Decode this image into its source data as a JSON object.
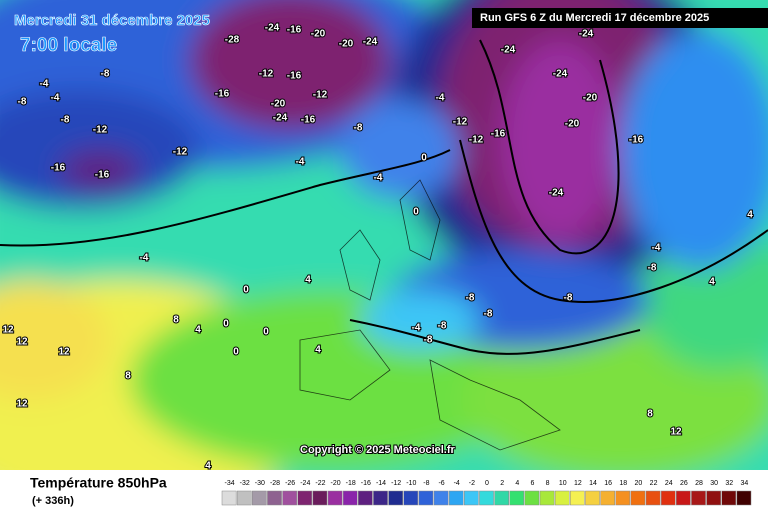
{
  "header": {
    "date": "Mercredi 31 décembre 2025",
    "time": "7:00 locale",
    "run": "Run GFS 6 Z du Mercredi 17 décembre 2025"
  },
  "copyright": "Copyright © 2025 Meteociel.fr",
  "footer": {
    "title": "Température 850hPa",
    "lead": "(+ 336h)"
  },
  "scale": {
    "values": [
      -34,
      -32,
      -30,
      -28,
      -26,
      -24,
      -22,
      -20,
      -18,
      -16,
      -14,
      -12,
      -10,
      -8,
      -6,
      -4,
      -2,
      0,
      2,
      4,
      6,
      8,
      10,
      12,
      14,
      16,
      18,
      20,
      22,
      24,
      26,
      28,
      30,
      32,
      34
    ],
    "colors": [
      "#dcdcdc",
      "#c0c0c0",
      "#a49aa8",
      "#8e6290",
      "#a0509e",
      "#7e2470",
      "#6a1c5c",
      "#9a2fa0",
      "#8a24aa",
      "#5e2080",
      "#3c2688",
      "#202c90",
      "#2646ba",
      "#2f62d8",
      "#3f82ea",
      "#2ea6f2",
      "#3cc6f6",
      "#34dadc",
      "#30d8a6",
      "#34e070",
      "#6ce042",
      "#a8e83a",
      "#d8f040",
      "#f5f052",
      "#f5d040",
      "#f5b030",
      "#f59020",
      "#f07010",
      "#e85010",
      "#e03010",
      "#c81818",
      "#a81818",
      "#901010",
      "#700808",
      "#400000"
    ]
  },
  "contour_labels": [
    -28,
    -24,
    -20,
    -20,
    -24,
    -16,
    -8,
    -4,
    -8,
    -4,
    -8,
    -12,
    -16,
    -16,
    -12,
    -16,
    -12,
    -16,
    -12,
    -20,
    -24,
    -16,
    -8,
    -4,
    -4,
    -12,
    -12,
    -16,
    -24,
    -24,
    -24,
    -20,
    -20,
    -16,
    -24,
    -4,
    4,
    0,
    4,
    0,
    0,
    0,
    4,
    8,
    12,
    12,
    12,
    12,
    8,
    -8,
    -8,
    -8,
    -4,
    -8,
    -8,
    4,
    4,
    -4,
    -8,
    8,
    12,
    4,
    -4,
    0,
    0
  ]
}
